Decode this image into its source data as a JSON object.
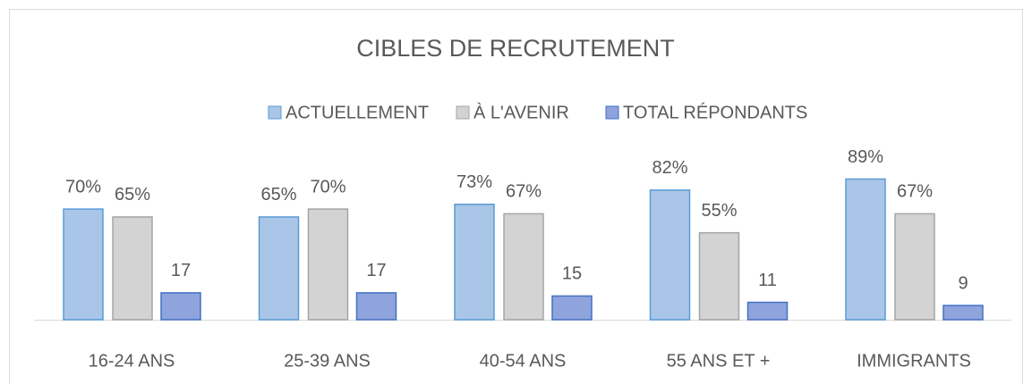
{
  "chart_data": {
    "type": "bar",
    "title": "CIBLES DE RECRUTEMENT",
    "categories": [
      "16-24 ANS",
      "25-39 ANS",
      "40-54 ANS",
      "55 ANS ET +",
      "IMMIGRANTS"
    ],
    "series": [
      {
        "name": "ACTUELLEMENT",
        "color": "#a9c6e8",
        "values": [
          70,
          65,
          73,
          82,
          89
        ],
        "value_labels": [
          "70%",
          "65%",
          "73%",
          "82%",
          "89%"
        ]
      },
      {
        "name": "À L'AVENIR",
        "color": "#d3d3d3",
        "values": [
          65,
          70,
          67,
          55,
          67
        ],
        "value_labels": [
          "65%",
          "70%",
          "67%",
          "55%",
          "67%"
        ]
      },
      {
        "name": "TOTAL RÉPONDANTS",
        "color": "#8fa3dc",
        "values": [
          17,
          17,
          15,
          11,
          9
        ]
      }
    ]
  }
}
